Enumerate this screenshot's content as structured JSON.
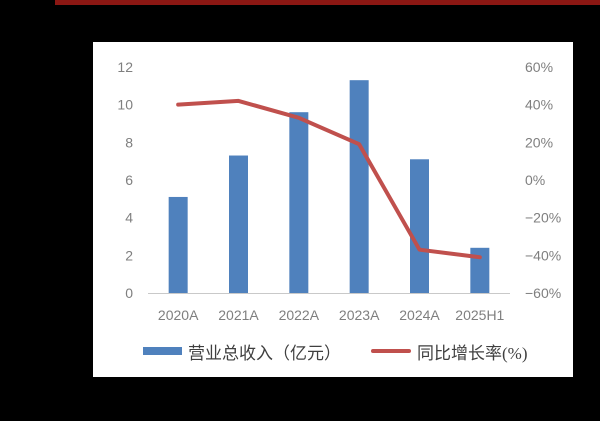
{
  "page": {
    "background": "#000000",
    "accent_bar_color": "#8B1713",
    "panel_color": "#FFFFFF"
  },
  "chart_data": {
    "type": "bar",
    "title": "",
    "categories": [
      "2020A",
      "2021A",
      "2022A",
      "2023A",
      "2024A",
      "2025H1"
    ],
    "series": [
      {
        "name": "营业总收入（亿元）",
        "type": "bar",
        "axis": "left",
        "color": "#4F81BD",
        "values": [
          5.1,
          7.3,
          9.6,
          11.3,
          7.1,
          2.4
        ]
      },
      {
        "name": "同比增长率(%)",
        "type": "line",
        "axis": "right",
        "color": "#C0504D",
        "values": [
          40,
          42,
          33,
          19,
          -37,
          -41
        ]
      }
    ],
    "left_axis": {
      "min": 0,
      "max": 12,
      "step": 2,
      "tick_labels": [
        "0",
        "2",
        "4",
        "6",
        "8",
        "10",
        "12"
      ]
    },
    "right_axis": {
      "min": -60,
      "max": 60,
      "step": 20,
      "tick_labels": [
        "−60%",
        "−40%",
        "−20%",
        "0%",
        "20%",
        "40%",
        "60%"
      ]
    },
    "legend_position": "bottom",
    "grid": false,
    "text_color": "#7F7F7F",
    "axis_line_color": "#C9C9C9"
  }
}
